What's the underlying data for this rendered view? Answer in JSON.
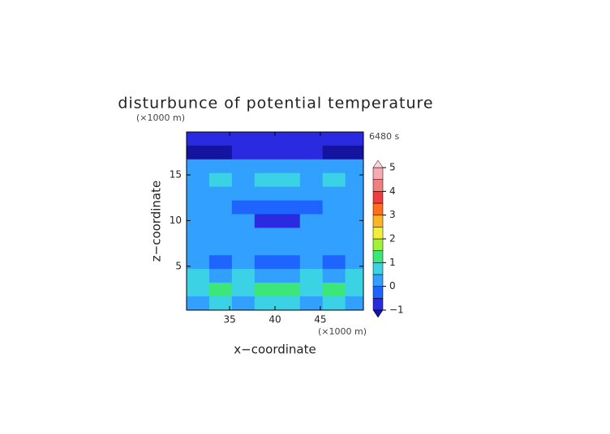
{
  "chart_data": {
    "type": "heatmap",
    "title": "disturbunce of potential temperature",
    "time_label": "6480 s",
    "x_label": "x−coordinate",
    "y_label": "z−coordinate",
    "x_unit": "(×1000 m)",
    "y_unit": "(×1000 m)",
    "xlim": [
      30.25,
      49.75
    ],
    "ylim": [
      0.2,
      19.7
    ],
    "xticks": [
      35,
      40,
      45
    ],
    "yticks": [
      5,
      10,
      15
    ],
    "x": [
      31.5,
      34,
      36.5,
      39,
      41.5,
      44,
      46.5,
      49
    ],
    "y": [
      1,
      2.5,
      4,
      5.5,
      7,
      8.5,
      10,
      11.5,
      13,
      14.5,
      16,
      17.5,
      19
    ],
    "values": [
      [
        0.3,
        0.7,
        0.4,
        0.8,
        0.8,
        0.4,
        0.7,
        0.3
      ],
      [
        0.9,
        1.2,
        0.7,
        1.1,
        1.1,
        0.7,
        1.2,
        0.9
      ],
      [
        0.6,
        0.3,
        0.7,
        0.2,
        0.2,
        0.7,
        0.3,
        0.6
      ],
      [
        0.2,
        -0.3,
        0.3,
        -0.4,
        -0.4,
        0.3,
        -0.3,
        0.2
      ],
      [
        0.1,
        0.3,
        0.0,
        0.4,
        0.4,
        0.0,
        0.3,
        0.1
      ],
      [
        0.2,
        0.1,
        0.2,
        0.0,
        0.0,
        0.2,
        0.1,
        0.2
      ],
      [
        0.1,
        0.2,
        0.1,
        -0.6,
        -0.6,
        0.1,
        0.2,
        0.1
      ],
      [
        0.2,
        0.0,
        -0.2,
        -0.3,
        -0.3,
        -0.2,
        0.0,
        0.2
      ],
      [
        0.3,
        0.2,
        0.1,
        0.2,
        0.2,
        0.1,
        0.2,
        0.3
      ],
      [
        0.2,
        0.6,
        0.3,
        0.5,
        0.5,
        0.3,
        0.6,
        0.2
      ],
      [
        0.1,
        0.2,
        0.3,
        0.3,
        0.3,
        0.3,
        0.2,
        0.1
      ],
      [
        -1.2,
        -1.1,
        -1.0,
        -1.0,
        -1.0,
        -1.0,
        -1.1,
        -1.2
      ],
      [
        -0.6,
        -0.8,
        -0.9,
        -0.9,
        -0.9,
        -0.9,
        -0.8,
        -0.6
      ]
    ],
    "levels": [
      -1,
      -0.5,
      0,
      0.5,
      1,
      1.5,
      2,
      2.5,
      3,
      3.5,
      4,
      4.5,
      5
    ],
    "colors": [
      "#2a2ae0",
      "#1e64ff",
      "#32a0ff",
      "#3cd2e6",
      "#3ce678",
      "#a0f03c",
      "#f0f03c",
      "#ffb428",
      "#ff6e1e",
      "#f03c3c",
      "#f08080",
      "#f5aab4"
    ],
    "under_color": "#1414a0",
    "over_color": "#ffd2dc",
    "colorbar_ticks": [
      {
        "value": -1,
        "label": "−1"
      },
      0,
      1,
      2,
      3,
      4,
      5
    ]
  }
}
